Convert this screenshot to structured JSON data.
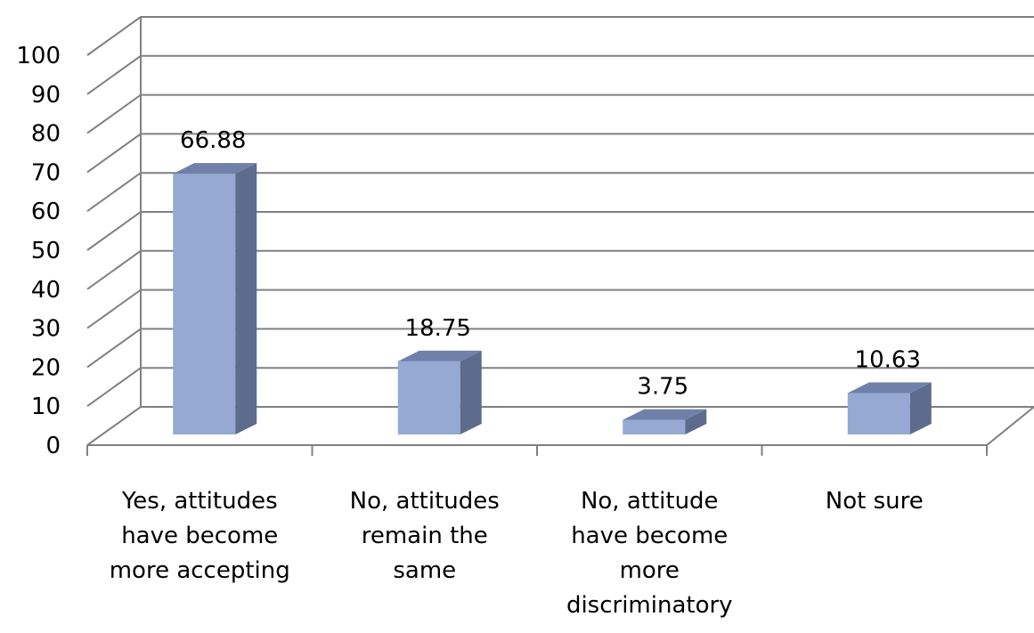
{
  "chart_data": {
    "type": "bar",
    "categories": [
      "Yes, attitudes have become more accepting",
      "No, attitudes remain the same",
      "No, attitude have become more discriminatory",
      "Not sure"
    ],
    "category_lines": [
      [
        "Yes, attitudes",
        "have become",
        "more accepting"
      ],
      [
        "No, attitudes",
        "remain the",
        "same"
      ],
      [
        "No, attitude",
        "have become",
        "more",
        "discriminatory"
      ],
      [
        "Not sure"
      ]
    ],
    "values": [
      66.88,
      18.75,
      3.75,
      10.63
    ],
    "data_labels": [
      "66.88",
      "18.75",
      "3.75",
      "10.63"
    ],
    "ylim": [
      0,
      100
    ],
    "yticks": [
      0,
      10,
      20,
      30,
      40,
      50,
      60,
      70,
      80,
      90,
      100
    ],
    "grid": true,
    "style": "3d-column",
    "colors": {
      "front": "#95a9d3",
      "side": "#5d6b8c",
      "top": "#6f81a8",
      "grid": "#808080"
    }
  }
}
